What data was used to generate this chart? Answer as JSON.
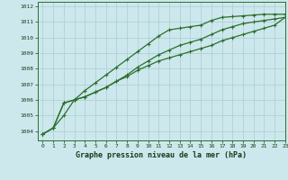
{
  "title": "Graphe pression niveau de la mer (hPa)",
  "bg_color": "#cce8ec",
  "grid_color": "#aaccd4",
  "line_color": "#2d6e2d",
  "marker_color": "#2d6e2d",
  "xlim": [
    -0.5,
    23
  ],
  "ylim": [
    1003.4,
    1012.3
  ],
  "yticks": [
    1004,
    1005,
    1006,
    1007,
    1008,
    1009,
    1010,
    1011,
    1012
  ],
  "xticks": [
    0,
    1,
    2,
    3,
    4,
    5,
    6,
    7,
    8,
    9,
    10,
    11,
    12,
    13,
    14,
    15,
    16,
    17,
    18,
    19,
    20,
    21,
    22,
    23
  ],
  "series1": [
    1003.8,
    1004.2,
    1005.0,
    1006.0,
    1006.6,
    1007.1,
    1007.6,
    1008.1,
    1008.6,
    1009.1,
    1009.6,
    1010.1,
    1010.5,
    1010.6,
    1010.7,
    1010.8,
    1011.1,
    1011.3,
    1011.35,
    1011.4,
    1011.45,
    1011.5,
    1011.5,
    1011.5
  ],
  "series2": [
    1003.8,
    1004.2,
    1005.8,
    1006.0,
    1006.2,
    1006.5,
    1006.8,
    1007.2,
    1007.6,
    1008.1,
    1008.5,
    1008.9,
    1009.2,
    1009.5,
    1009.7,
    1009.9,
    1010.2,
    1010.5,
    1010.7,
    1010.9,
    1011.0,
    1011.1,
    1011.2,
    1011.3
  ],
  "series3": [
    1003.8,
    1004.2,
    1005.8,
    1006.0,
    1006.2,
    1006.5,
    1006.8,
    1007.2,
    1007.5,
    1007.9,
    1008.2,
    1008.5,
    1008.7,
    1008.9,
    1009.1,
    1009.3,
    1009.5,
    1009.8,
    1010.0,
    1010.2,
    1010.4,
    1010.6,
    1010.8,
    1011.3
  ],
  "title_fontsize": 6.0,
  "tick_fontsize": 4.5
}
